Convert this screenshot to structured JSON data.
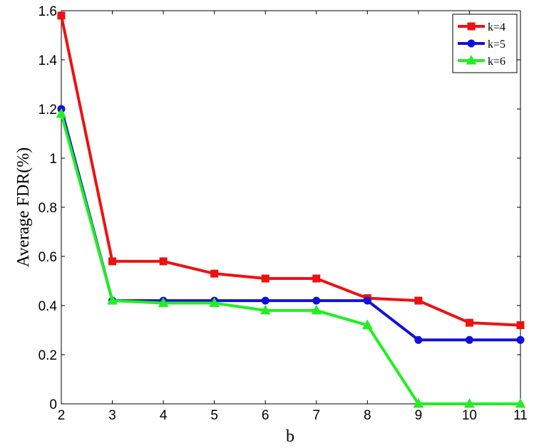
{
  "chart_data": {
    "type": "line",
    "title": "",
    "xlabel": "b",
    "ylabel": "Average FDR(%)",
    "x": [
      2,
      3,
      4,
      5,
      6,
      7,
      8,
      9,
      10,
      11
    ],
    "xlim": [
      2,
      11
    ],
    "ylim": [
      0,
      1.6
    ],
    "xticks": [
      "2",
      "3",
      "4",
      "5",
      "6",
      "7",
      "8",
      "9",
      "10",
      "11"
    ],
    "yticks": [
      "0",
      "0.2",
      "0.4",
      "0.6",
      "0.8",
      "1",
      "1.2",
      "1.4",
      "1.6"
    ],
    "grid": false,
    "legend_position": "top-right",
    "series": [
      {
        "name": "k=4",
        "color": "#ee1111",
        "marker": "square",
        "values": [
          1.58,
          0.58,
          0.58,
          0.53,
          0.51,
          0.51,
          0.43,
          0.42,
          0.33,
          0.32
        ]
      },
      {
        "name": "k=5",
        "color": "#1111dd",
        "marker": "circle",
        "values": [
          1.2,
          0.42,
          0.42,
          0.42,
          0.42,
          0.42,
          0.42,
          0.26,
          0.26,
          0.26
        ]
      },
      {
        "name": "k=6",
        "color": "#22ee22",
        "marker": "triangle",
        "values": [
          1.18,
          0.42,
          0.41,
          0.41,
          0.38,
          0.38,
          0.32,
          0.0,
          0.0,
          0.0
        ]
      }
    ]
  }
}
